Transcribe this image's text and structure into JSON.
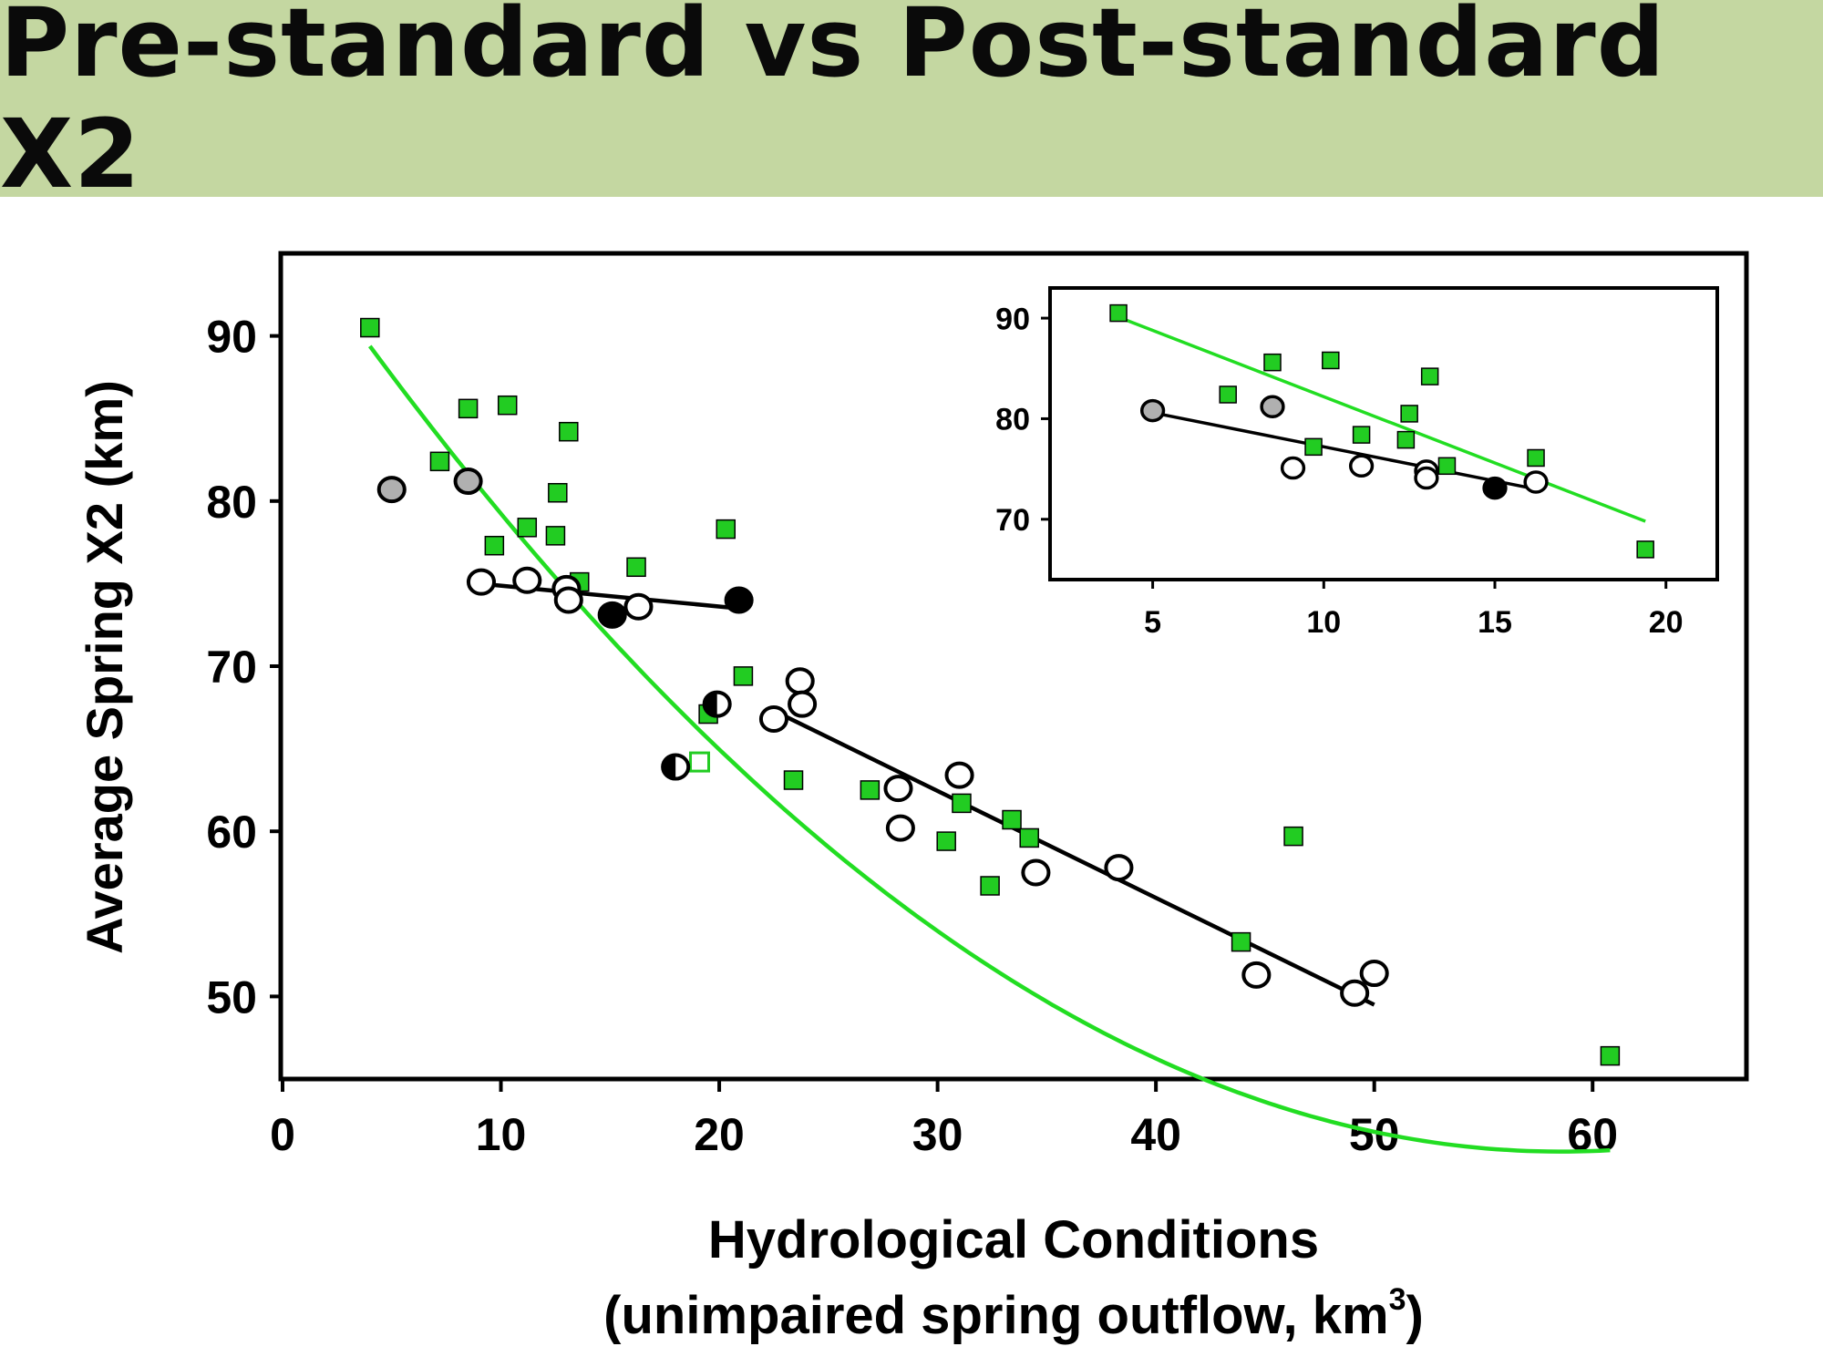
{
  "title": "Pre-standard vs Post-standard X2",
  "colors": {
    "title_background": "#c4d7a1",
    "series_green": "#22cc22",
    "fit_green": "#22dd22",
    "fit_black": "#000000",
    "marker_outline": "#000000",
    "marker_gray": "#b0b0b0"
  },
  "chart_data": [
    {
      "type": "scatter",
      "title": "",
      "xlabel": "Hydrological Conditions",
      "xlabel_line2_prefix": "(unimpaired spring outflow, km",
      "xlabel_line2_sup": "3",
      "xlabel_line2_suffix": ")",
      "ylabel": "Average Spring X2 (km)",
      "xlim": [
        0,
        65
      ],
      "ylim": [
        45,
        95
      ],
      "xticks": [
        0,
        10,
        20,
        30,
        40,
        50,
        60
      ],
      "yticks": [
        50,
        60,
        70,
        80,
        90
      ],
      "xtick_labels": [
        "0",
        "10",
        "20",
        "30",
        "40",
        "50",
        "60"
      ],
      "ytick_labels": [
        "50",
        "60",
        "70",
        "80",
        "90"
      ],
      "grid": false,
      "series": [
        {
          "name": "Pre-standard (green squares)",
          "marker": "square",
          "points": [
            {
              "x": 4,
              "y": 90.5
            },
            {
              "x": 7.2,
              "y": 82.4
            },
            {
              "x": 8.5,
              "y": 85.6
            },
            {
              "x": 9.7,
              "y": 77.3
            },
            {
              "x": 10.3,
              "y": 85.8
            },
            {
              "x": 11.2,
              "y": 78.4
            },
            {
              "x": 12.5,
              "y": 77.9
            },
            {
              "x": 12.6,
              "y": 80.5
            },
            {
              "x": 13.1,
              "y": 84.2
            },
            {
              "x": 13.6,
              "y": 75.1
            },
            {
              "x": 16.2,
              "y": 76
            },
            {
              "x": 19.5,
              "y": 67.1
            },
            {
              "x": 20.3,
              "y": 78.3
            },
            {
              "x": 21.1,
              "y": 69.4
            },
            {
              "x": 23.4,
              "y": 63.1
            },
            {
              "x": 26.9,
              "y": 62.5
            },
            {
              "x": 30.4,
              "y": 59.4
            },
            {
              "x": 31.1,
              "y": 61.7
            },
            {
              "x": 32.4,
              "y": 56.7
            },
            {
              "x": 33.4,
              "y": 60.7
            },
            {
              "x": 34.2,
              "y": 59.6
            },
            {
              "x": 43.9,
              "y": 53.3
            },
            {
              "x": 46.3,
              "y": 59.7
            },
            {
              "x": 60.8,
              "y": 46.4
            }
          ]
        },
        {
          "name": "Green square outline",
          "marker": "square-open",
          "points": [
            {
              "x": 19.1,
              "y": 64.2
            }
          ]
        },
        {
          "name": "Open circles",
          "marker": "circle-open",
          "points": [
            {
              "x": 9.1,
              "y": 75.1
            },
            {
              "x": 11.2,
              "y": 75.2
            },
            {
              "x": 13,
              "y": 74.7
            },
            {
              "x": 13.1,
              "y": 74
            },
            {
              "x": 16.3,
              "y": 73.6
            },
            {
              "x": 22.5,
              "y": 66.8
            },
            {
              "x": 23.7,
              "y": 69.1
            },
            {
              "x": 23.8,
              "y": 67.7
            },
            {
              "x": 28.2,
              "y": 62.6
            },
            {
              "x": 28.3,
              "y": 60.2
            },
            {
              "x": 31,
              "y": 63.4
            },
            {
              "x": 34.5,
              "y": 57.5
            },
            {
              "x": 38.3,
              "y": 57.8
            },
            {
              "x": 44.6,
              "y": 51.3
            },
            {
              "x": 49.1,
              "y": 50.2
            },
            {
              "x": 50,
              "y": 51.4
            }
          ]
        },
        {
          "name": "Gray circles",
          "marker": "circle-gray",
          "points": [
            {
              "x": 5,
              "y": 80.7
            },
            {
              "x": 8.5,
              "y": 81.2
            }
          ]
        },
        {
          "name": "Filled circles",
          "marker": "circle-filled",
          "points": [
            {
              "x": 15.1,
              "y": 73.1
            },
            {
              "x": 20.9,
              "y": 74
            }
          ]
        },
        {
          "name": "Half-filled circles",
          "marker": "circle-half",
          "points": [
            {
              "x": 18,
              "y": 63.9
            },
            {
              "x": 19.9,
              "y": 67.7
            }
          ]
        }
      ],
      "fits": [
        {
          "name": "Green quadratic fit",
          "color": "green",
          "type": "quadratic",
          "x_range": [
            4,
            60.8
          ],
          "coefficients": [
            96.8,
            -1.92,
            0.0164
          ]
        },
        {
          "name": "Black fit low flow",
          "color": "black",
          "type": "linear",
          "points": [
            {
              "x": 9,
              "y": 75
            },
            {
              "x": 20.9,
              "y": 73.5
            }
          ]
        },
        {
          "name": "Black fit high flow",
          "color": "black",
          "type": "linear",
          "points": [
            {
              "x": 22.5,
              "y": 67.3
            },
            {
              "x": 50,
              "y": 49.5
            }
          ]
        }
      ]
    },
    {
      "type": "scatter",
      "title": "Inset",
      "xlim": [
        2,
        21.5
      ],
      "ylim": [
        64,
        93
      ],
      "xticks": [
        5,
        10,
        15,
        20
      ],
      "yticks": [
        70,
        80,
        90
      ],
      "xtick_labels": [
        "5",
        "10",
        "15",
        "20"
      ],
      "ytick_labels": [
        "70",
        "80",
        "90"
      ],
      "grid": false,
      "series": [
        {
          "name": "Pre-standard (green squares)",
          "marker": "square",
          "points": [
            {
              "x": 4,
              "y": 90.5
            },
            {
              "x": 7.2,
              "y": 82.4
            },
            {
              "x": 8.5,
              "y": 85.6
            },
            {
              "x": 9.7,
              "y": 77.2
            },
            {
              "x": 10.2,
              "y": 85.8
            },
            {
              "x": 11.1,
              "y": 78.4
            },
            {
              "x": 12.4,
              "y": 77.9
            },
            {
              "x": 12.5,
              "y": 80.5
            },
            {
              "x": 13.1,
              "y": 84.2
            },
            {
              "x": 13.6,
              "y": 75.3
            },
            {
              "x": 16.2,
              "y": 76.1
            },
            {
              "x": 19.4,
              "y": 67
            }
          ]
        },
        {
          "name": "Open circles",
          "marker": "circle-open",
          "points": [
            {
              "x": 9.1,
              "y": 75.1
            },
            {
              "x": 11.1,
              "y": 75.3
            },
            {
              "x": 13,
              "y": 74.8
            },
            {
              "x": 13,
              "y": 74.1
            },
            {
              "x": 16.2,
              "y": 73.7
            }
          ]
        },
        {
          "name": "Gray circles",
          "marker": "circle-gray",
          "points": [
            {
              "x": 5,
              "y": 80.8
            },
            {
              "x": 8.5,
              "y": 81.2
            }
          ]
        },
        {
          "name": "Filled circles",
          "marker": "circle-filled",
          "points": [
            {
              "x": 15,
              "y": 73.1
            }
          ]
        }
      ],
      "fits": [
        {
          "name": "Green linear fit",
          "color": "green",
          "type": "linear",
          "points": [
            {
              "x": 4,
              "y": 90.1
            },
            {
              "x": 19.4,
              "y": 69.8
            }
          ]
        },
        {
          "name": "Black linear fit",
          "color": "black",
          "type": "linear",
          "points": [
            {
              "x": 5,
              "y": 80.6
            },
            {
              "x": 16.2,
              "y": 73
            }
          ]
        }
      ]
    }
  ]
}
